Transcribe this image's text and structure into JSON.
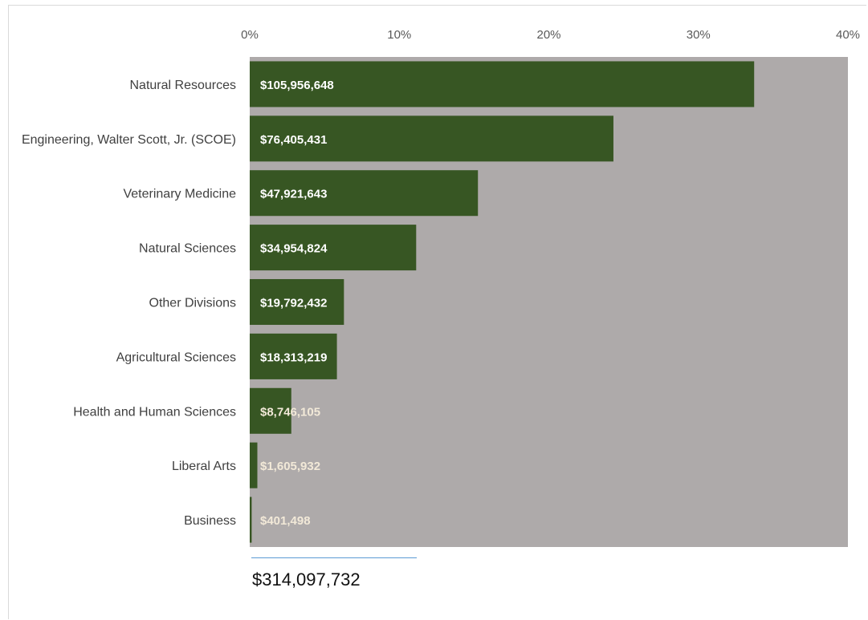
{
  "chart_data": {
    "type": "bar",
    "orientation": "horizontal",
    "categories": [
      "Natural Resources",
      "Engineering, Walter Scott, Jr. (SCOE)",
      "Veterinary Medicine",
      "Natural Sciences",
      "Other Divisions",
      "Agricultural Sciences",
      "Health and Human Sciences",
      "Liberal Arts",
      "Business"
    ],
    "values": [
      33.73,
      24.32,
      15.26,
      11.13,
      6.3,
      5.83,
      2.78,
      0.51,
      0.13
    ],
    "data_labels": [
      "$105,956,648",
      "$76,405,431",
      "$47,921,643",
      "$34,954,824",
      "$19,792,432",
      "$18,313,219",
      "$8,746,105",
      "$1,605,932",
      "$401,498"
    ],
    "xlim": [
      0,
      40
    ],
    "x_ticks": [
      "0%",
      "10%",
      "20%",
      "30%",
      "40%"
    ],
    "x_tick_values": [
      0,
      10,
      20,
      30,
      40
    ],
    "axis_position": "top",
    "grid": false,
    "legend": "none",
    "total_label": "$314,097,732",
    "colors": {
      "bar": "#375623",
      "plot_background": "#aeaaaa",
      "label_light": "#ffffff",
      "label_beige": "#f2e9d8",
      "total_underline": "#5b9bd5"
    }
  }
}
